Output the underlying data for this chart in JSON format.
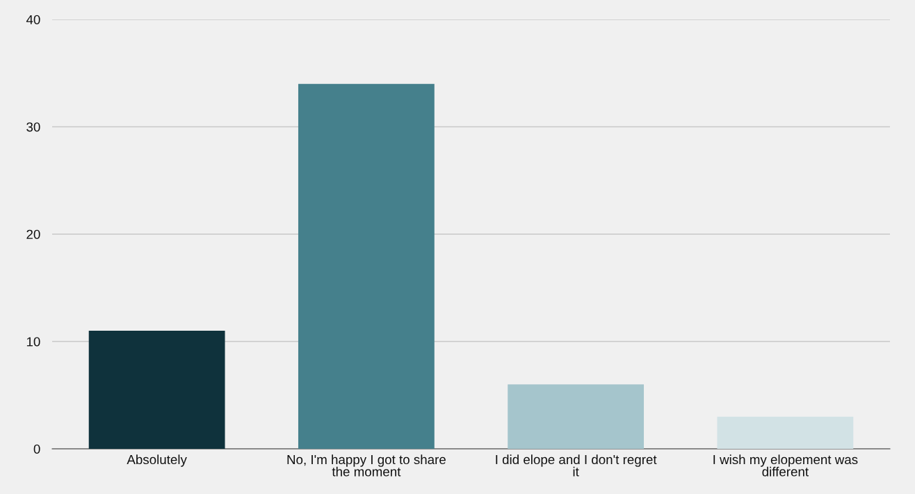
{
  "chart_data": {
    "type": "bar",
    "categories": [
      "Absolutely",
      "No, I'm happy I got to share the moment",
      "I did elope and I don't regret it",
      "I wish my elopement was different"
    ],
    "values": [
      11,
      34,
      6,
      3
    ],
    "colors": [
      "#0f323c",
      "#45808c",
      "#a5c5cc",
      "#d2e2e5"
    ],
    "ylim": [
      0,
      40
    ],
    "yticks": [
      0,
      10,
      20,
      30,
      40
    ],
    "grid": "y",
    "legend": false
  }
}
